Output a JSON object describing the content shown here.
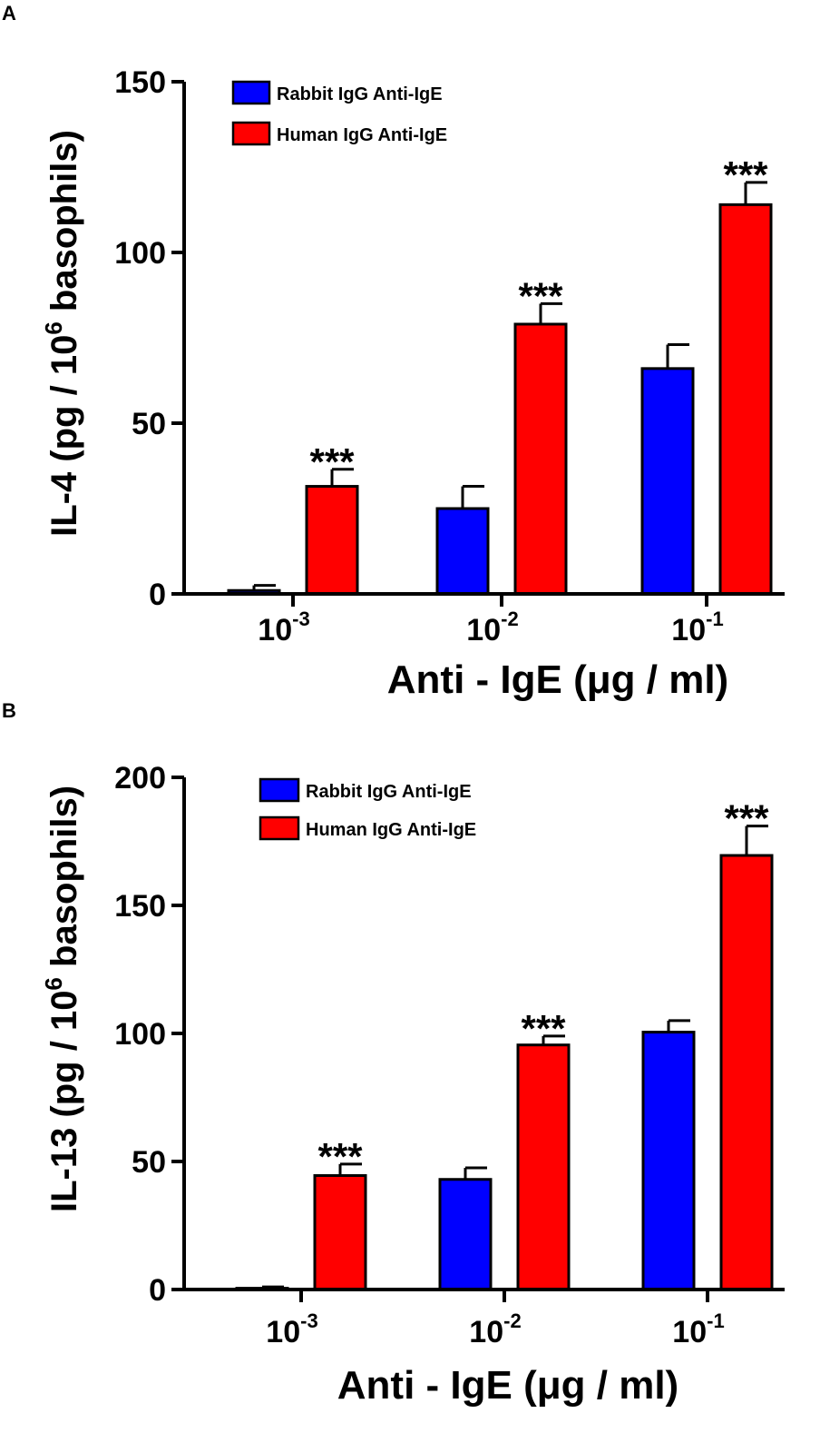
{
  "chart_data": [
    {
      "type": "bar",
      "panel_label": "A",
      "categories": [
        {
          "base": "10",
          "exp": "-3"
        },
        {
          "base": "10",
          "exp": "-2"
        },
        {
          "base": "10",
          "exp": "-1"
        }
      ],
      "series": [
        {
          "name": "Rabbit IgG Anti-IgE",
          "color": "#0000ff",
          "values": [
            1,
            25,
            66
          ],
          "errors": [
            1.5,
            6.5,
            7
          ]
        },
        {
          "name": "Human IgG Anti-IgE",
          "color": "#ff0000",
          "values": [
            31.5,
            79,
            114
          ],
          "errors": [
            5,
            6,
            6.5
          ]
        }
      ],
      "significance": [
        {
          "category": 0,
          "series": 1,
          "text": "***"
        },
        {
          "category": 1,
          "series": 1,
          "text": "***"
        },
        {
          "category": 2,
          "series": 1,
          "text": "***"
        }
      ],
      "ylabel": {
        "prefix": "IL-4 (pg / 10",
        "sup": "6",
        "suffix": " basophils)"
      },
      "xlabel": "Anti - IgE (μg / ml)",
      "ylim": [
        0,
        150
      ],
      "yticks": [
        "0",
        "50",
        "100",
        "150"
      ],
      "legend_position": "top-left"
    },
    {
      "type": "bar",
      "panel_label": "B",
      "categories": [
        {
          "base": "10",
          "exp": "-3"
        },
        {
          "base": "10",
          "exp": "-2"
        },
        {
          "base": "10",
          "exp": "-1"
        }
      ],
      "series": [
        {
          "name": "Rabbit IgG Anti-IgE",
          "color": "#0000ff",
          "values": [
            0.5,
            43,
            100.5
          ],
          "errors": [
            0.5,
            4.5,
            4.5
          ]
        },
        {
          "name": "Human IgG Anti-IgE",
          "color": "#ff0000",
          "values": [
            44.5,
            95.5,
            169.5
          ],
          "errors": [
            4.5,
            3.5,
            11.5
          ]
        }
      ],
      "significance": [
        {
          "category": 0,
          "series": 1,
          "text": "***"
        },
        {
          "category": 1,
          "series": 1,
          "text": "***"
        },
        {
          "category": 2,
          "series": 1,
          "text": "***"
        }
      ],
      "ylabel": {
        "prefix": "IL-13 (pg / 10",
        "sup": "6",
        "suffix": " basophils)"
      },
      "xlabel": "Anti - IgE (μg / ml)",
      "ylim": [
        0,
        200
      ],
      "yticks": [
        "0",
        "50",
        "100",
        "150",
        "200"
      ],
      "legend_position": "top-left"
    }
  ]
}
